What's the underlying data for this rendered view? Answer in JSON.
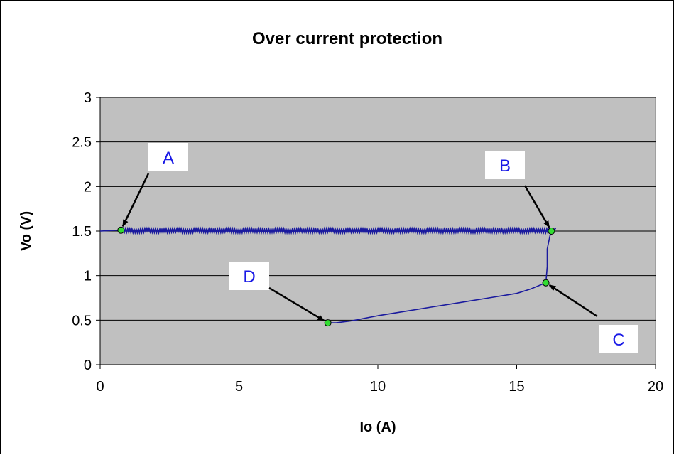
{
  "chart_data": {
    "type": "line",
    "title": "Over current protection",
    "xlabel": "Io (A)",
    "ylabel": "Vo (V)",
    "xlim": [
      0,
      20
    ],
    "ylim": [
      0,
      3
    ],
    "xticks": [
      "0",
      "5",
      "10",
      "15",
      "20"
    ],
    "yticks": [
      "0",
      "0.5",
      "1",
      "1.5",
      "2",
      "2.5",
      "3"
    ],
    "grid": "horizontal",
    "legend": "none",
    "colors": {
      "plot_area": "#c0c0c0",
      "series": "#1a1a9e",
      "marker": "#33dd33",
      "callout_text": "#1a1ae6"
    },
    "series": [
      {
        "values": [
          [
            0,
            1.5
          ],
          [
            0.7,
            1.51
          ],
          [
            2,
            1.51
          ],
          [
            4,
            1.5
          ],
          [
            6,
            1.5
          ],
          [
            8,
            1.5
          ],
          [
            10,
            1.5
          ],
          [
            12,
            1.5
          ],
          [
            14,
            1.5
          ],
          [
            15.5,
            1.5
          ],
          [
            16.25,
            1.5
          ],
          [
            16.4,
            1.53
          ],
          [
            16.2,
            1.45
          ],
          [
            16.1,
            1.3
          ],
          [
            16.1,
            1.1
          ],
          [
            16.05,
            0.92
          ],
          [
            15.5,
            0.85
          ],
          [
            15,
            0.8
          ],
          [
            14,
            0.75
          ],
          [
            13,
            0.7
          ],
          [
            12,
            0.65
          ],
          [
            11,
            0.6
          ],
          [
            10,
            0.55
          ],
          [
            9,
            0.49
          ],
          [
            8.5,
            0.47
          ],
          [
            8.2,
            0.47
          ]
        ]
      }
    ],
    "annotations": [
      {
        "label": "A",
        "x": 0.75,
        "y": 1.51
      },
      {
        "label": "B",
        "x": 16.25,
        "y": 1.5
      },
      {
        "label": "C",
        "x": 16.05,
        "y": 0.92
      },
      {
        "label": "D",
        "x": 8.2,
        "y": 0.47
      }
    ]
  }
}
